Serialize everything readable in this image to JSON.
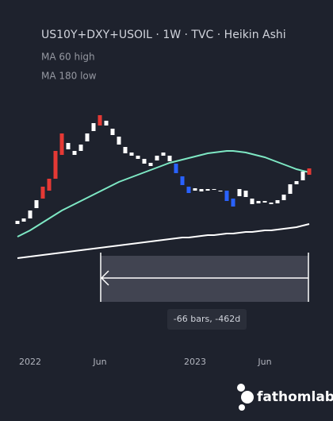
{
  "chart_data": {
    "type": "candlestick",
    "title": "US10Y+DXY+USOIL · 1W · TVC · Heikin Ashi",
    "categories": [
      null,
      null,
      "2022",
      null,
      null,
      null,
      null,
      null,
      null,
      null,
      null,
      null,
      null,
      "Jun",
      null,
      null,
      null,
      null,
      null,
      null,
      null,
      null,
      null,
      null,
      null,
      null,
      null,
      null,
      "2023",
      null,
      null,
      null,
      null,
      null,
      null,
      null,
      null,
      null,
      null,
      "Jun",
      null,
      null,
      null,
      null,
      null,
      null,
      null
    ],
    "open": [
      48,
      51,
      55,
      68,
      80,
      90,
      105,
      135,
      150,
      140,
      140,
      152,
      165,
      172,
      178,
      168,
      158,
      145,
      138,
      134,
      130,
      125,
      128,
      134,
      134,
      124,
      108,
      95,
      90,
      92,
      90,
      92,
      90,
      90,
      80,
      83,
      90,
      80,
      77,
      75,
      75,
      74,
      78,
      86,
      98,
      103,
      110
    ],
    "close": [
      52,
      55,
      65,
      78,
      95,
      105,
      140,
      162,
      142,
      135,
      148,
      162,
      175,
      185,
      172,
      160,
      148,
      137,
      134,
      130,
      124,
      121,
      134,
      138,
      127,
      112,
      97,
      87,
      93,
      89,
      92,
      91,
      89,
      77,
      70,
      92,
      82,
      73,
      74,
      77,
      73,
      78,
      85,
      98,
      102,
      114,
      118
    ],
    "colors": [
      "#ffffff",
      "#ffffff",
      "#ffffff",
      "#ffffff",
      "#e53935",
      "#e53935",
      "#e53935",
      "#e53935",
      "#ffffff",
      "#ffffff",
      "#ffffff",
      "#ffffff",
      "#ffffff",
      "#e53935",
      "#ffffff",
      "#ffffff",
      "#ffffff",
      "#ffffff",
      "#ffffff",
      "#ffffff",
      "#ffffff",
      "#ffffff",
      "#ffffff",
      "#ffffff",
      "#ffffff",
      "#2962ff",
      "#2962ff",
      "#2962ff",
      "#ffffff",
      "#ffffff",
      "#ffffff",
      "#ffffff",
      "#ffffff",
      "#2962ff",
      "#2962ff",
      "#ffffff",
      "#ffffff",
      "#ffffff",
      "#ffffff",
      "#ffffff",
      "#ffffff",
      "#ffffff",
      "#ffffff",
      "#ffffff",
      "#ffffff",
      "#ffffff",
      "#e53935"
    ],
    "series": [
      {
        "name": "MA 60 high",
        "color": "#7ee8c4",
        "values": [
          32,
          36,
          40,
          45,
          50,
          55,
          60,
          65,
          69,
          73,
          77,
          81,
          85,
          89,
          93,
          97,
          101,
          104,
          107,
          110,
          113,
          116,
          119,
          122,
          125,
          127,
          129,
          131,
          133,
          135,
          137,
          138,
          139,
          140,
          140,
          139,
          138,
          136,
          134,
          132,
          129,
          126,
          123,
          120,
          117,
          115,
          113
        ]
      },
      {
        "name": "MA 180 low",
        "color": "#ffffff",
        "values": [
          5,
          6,
          7,
          8,
          9,
          10,
          11,
          12,
          13,
          14,
          15,
          16,
          17,
          18,
          19,
          20,
          21,
          22,
          23,
          24,
          25,
          26,
          27,
          28,
          29,
          30,
          31,
          31,
          32,
          33,
          34,
          34,
          35,
          36,
          36,
          37,
          38,
          38,
          39,
          40,
          40,
          41,
          42,
          43,
          44,
          46,
          48
        ]
      }
    ],
    "ylim": [
      0,
      200
    ],
    "measure_label": "-66 bars, -462d",
    "brand": "fathomlab"
  }
}
